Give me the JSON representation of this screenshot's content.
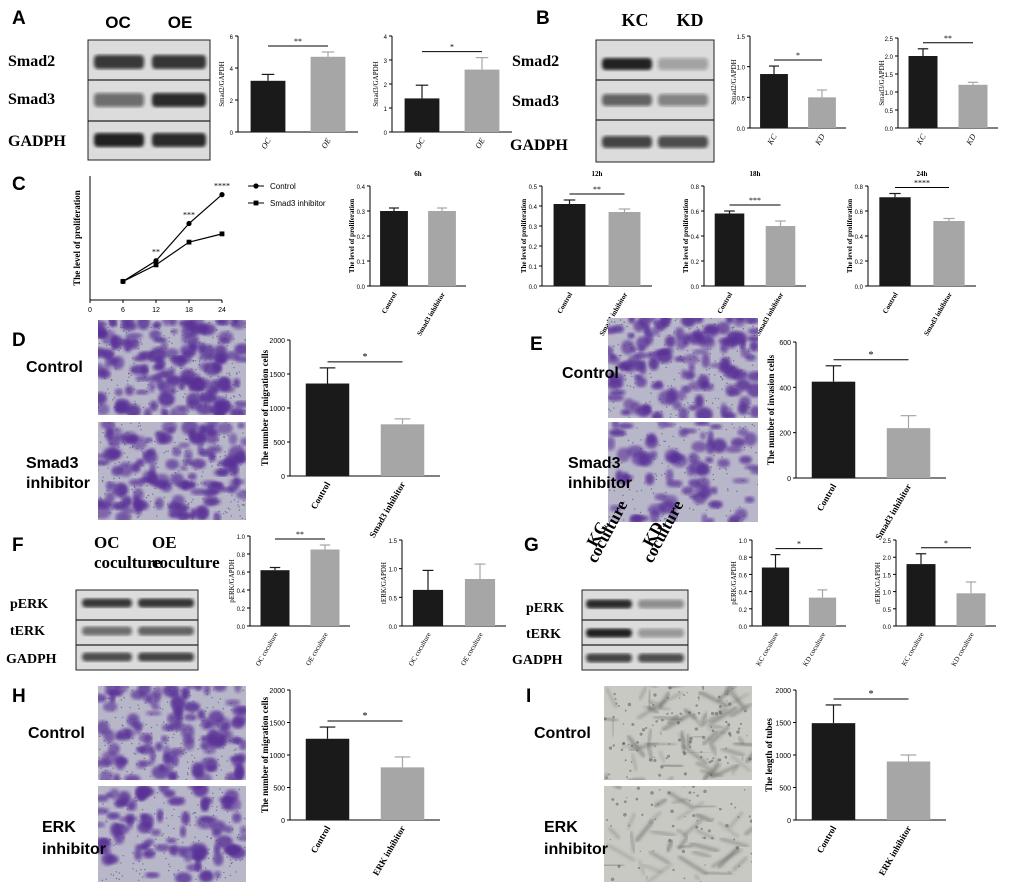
{
  "panels": {
    "A": {
      "label": "A",
      "blot": {
        "lanes": [
          "OC",
          "OE"
        ],
        "rows": [
          "Smad2",
          "Smad3",
          "GADPH"
        ]
      }
    },
    "B": {
      "label": "B",
      "blot": {
        "lanes": [
          "KC",
          "KD"
        ],
        "rows": [
          "Smad2",
          "Smad3",
          "GADPH"
        ]
      }
    },
    "C": {
      "label": "C",
      "legend": [
        "Control",
        "Smad3 inhibitor"
      ]
    },
    "D": {
      "label": "D",
      "images": [
        "Control",
        "Smad3\ninhibitor"
      ]
    },
    "E": {
      "label": "E",
      "images": [
        "Control",
        "Smad3\ninhibitor"
      ]
    },
    "F": {
      "label": "F",
      "blot": {
        "lanes": [
          "OC\ncoculture",
          "OE\ncoculture"
        ],
        "rows": [
          "pERK",
          "tERK",
          "GADPH"
        ]
      }
    },
    "G": {
      "label": "G",
      "blot": {
        "lanes": [
          "KC\ncoculture",
          "KD\ncoculture"
        ],
        "rows": [
          "pERK",
          "tERK",
          "GADPH"
        ]
      }
    },
    "H": {
      "label": "H",
      "images": [
        "Control",
        "ERK\ninhibitor"
      ]
    },
    "I": {
      "label": "I",
      "images": [
        "Control",
        "ERK\ninhibitor"
      ]
    }
  },
  "colors": {
    "black": "#1a1a1a",
    "gray": "#a6a6a6"
  },
  "chart_data": [
    {
      "id": "A1",
      "type": "bar",
      "categories": [
        "OC",
        "OE"
      ],
      "values": [
        3.2,
        4.7
      ],
      "errors": [
        0.4,
        0.3
      ],
      "ylabel": "Smad2/GAPDH",
      "ylim": [
        0,
        6
      ],
      "yticks": [
        0,
        2,
        4,
        6
      ],
      "sig": "**"
    },
    {
      "id": "A2",
      "type": "bar",
      "categories": [
        "OC",
        "OE"
      ],
      "values": [
        1.4,
        2.6
      ],
      "errors": [
        0.55,
        0.5
      ],
      "ylabel": "Smad3/GAPDH",
      "ylim": [
        0,
        4
      ],
      "yticks": [
        0,
        1,
        2,
        3,
        4
      ],
      "sig": "*"
    },
    {
      "id": "B1",
      "type": "bar",
      "categories": [
        "KC",
        "KD"
      ],
      "values": [
        0.88,
        0.5
      ],
      "errors": [
        0.13,
        0.12
      ],
      "ylabel": "Smad2/GAPDH",
      "ylim": [
        0,
        1.5
      ],
      "yticks": [
        0.0,
        0.5,
        1.0,
        1.5
      ],
      "sig": "*"
    },
    {
      "id": "B2",
      "type": "bar",
      "categories": [
        "KC",
        "KD"
      ],
      "values": [
        2.0,
        1.2
      ],
      "errors": [
        0.2,
        0.07
      ],
      "ylabel": "Smad3/GAPDH",
      "ylim": [
        0,
        2.5
      ],
      "yticks": [
        0.0,
        0.5,
        1.0,
        1.5,
        2.0,
        2.5
      ],
      "sig": "**"
    },
    {
      "id": "C0",
      "type": "line",
      "x": [
        6,
        12,
        18,
        24
      ],
      "xticks": [
        0,
        6,
        12,
        18,
        24
      ],
      "ylim": [
        0.2,
        0.8
      ],
      "ylabel": "The level of proliferation",
      "series": [
        {
          "name": "Control",
          "values": [
            0.29,
            0.39,
            0.57,
            0.71
          ]
        },
        {
          "name": "Smad3 inhibitor",
          "values": [
            0.29,
            0.37,
            0.48,
            0.52
          ]
        }
      ],
      "annotations": [
        "**",
        "***",
        "****"
      ]
    },
    {
      "id": "C1",
      "type": "bar",
      "title": "6h",
      "categories": [
        "Control",
        "Smad3 inhibitor"
      ],
      "values": [
        0.3,
        0.3
      ],
      "errors": [
        0.012,
        0.012
      ],
      "ylabel": "The level of proliferation",
      "ylim": [
        0,
        0.4
      ],
      "yticks": [
        0.0,
        0.1,
        0.2,
        0.3,
        0.4
      ],
      "sig": ""
    },
    {
      "id": "C2",
      "type": "bar",
      "title": "12h",
      "categories": [
        "Control",
        "Smad3 inhibitor"
      ],
      "values": [
        0.41,
        0.37
      ],
      "errors": [
        0.02,
        0.015
      ],
      "ylabel": "The level of proliferation",
      "ylim": [
        0,
        0.5
      ],
      "yticks": [
        0.0,
        0.1,
        0.2,
        0.3,
        0.4,
        0.5
      ],
      "sig": "**"
    },
    {
      "id": "C3",
      "type": "bar",
      "title": "18h",
      "categories": [
        "Control",
        "Smad3 inhibitor"
      ],
      "values": [
        0.58,
        0.48
      ],
      "errors": [
        0.02,
        0.04
      ],
      "ylabel": "The level of proliferation",
      "ylim": [
        0,
        0.8
      ],
      "yticks": [
        0.0,
        0.2,
        0.4,
        0.6,
        0.8
      ],
      "sig": "***"
    },
    {
      "id": "C4",
      "type": "bar",
      "title": "24h",
      "categories": [
        "Control",
        "Smad3 inhibitor"
      ],
      "values": [
        0.71,
        0.52
      ],
      "errors": [
        0.03,
        0.02
      ],
      "ylabel": "The level of proliferation",
      "ylim": [
        0,
        0.8
      ],
      "yticks": [
        0.0,
        0.2,
        0.4,
        0.6,
        0.8
      ],
      "sig": "****"
    },
    {
      "id": "D1",
      "type": "bar",
      "categories": [
        "Control",
        "Smad3 inhibitor"
      ],
      "values": [
        1360,
        760
      ],
      "errors": [
        230,
        80
      ],
      "ylabel": "The number of migration cells",
      "ylim": [
        0,
        2000
      ],
      "yticks": [
        0,
        500,
        1000,
        1500,
        2000
      ],
      "sig": "*"
    },
    {
      "id": "E1",
      "type": "bar",
      "categories": [
        "Control",
        "Smad3 inhibitor"
      ],
      "values": [
        425,
        220
      ],
      "errors": [
        70,
        55
      ],
      "ylabel": "The number of invasion cells",
      "ylim": [
        0,
        600
      ],
      "yticks": [
        0,
        200,
        400,
        600
      ],
      "sig": "*"
    },
    {
      "id": "F1",
      "type": "bar",
      "categories": [
        "OC coculture",
        "OE coculture"
      ],
      "values": [
        0.62,
        0.85
      ],
      "errors": [
        0.03,
        0.05
      ],
      "ylabel": "pERK/GAPDH",
      "ylim": [
        0,
        1.0
      ],
      "yticks": [
        0.0,
        0.2,
        0.4,
        0.6,
        0.8,
        1.0
      ],
      "sig": "**"
    },
    {
      "id": "F2",
      "type": "bar",
      "categories": [
        "OC coculture",
        "OE coculture"
      ],
      "values": [
        0.63,
        0.82
      ],
      "errors": [
        0.34,
        0.26
      ],
      "ylabel": "tERK/GAPDH",
      "ylim": [
        0,
        1.5
      ],
      "yticks": [
        0.0,
        0.5,
        1.0,
        1.5
      ],
      "sig": ""
    },
    {
      "id": "G1",
      "type": "bar",
      "categories": [
        "KC coculture",
        "KD coculture"
      ],
      "values": [
        0.68,
        0.33
      ],
      "errors": [
        0.15,
        0.09
      ],
      "ylabel": "pERK/GAPDH",
      "ylim": [
        0,
        1.0
      ],
      "yticks": [
        0.0,
        0.2,
        0.4,
        0.6,
        0.8,
        1.0
      ],
      "sig": "*"
    },
    {
      "id": "G2",
      "type": "bar",
      "categories": [
        "KC coculture",
        "KD coculture"
      ],
      "values": [
        1.8,
        0.95
      ],
      "errors": [
        0.3,
        0.33
      ],
      "ylabel": "tERK/GAPDH",
      "ylim": [
        0,
        2.5
      ],
      "yticks": [
        0.0,
        0.5,
        1.0,
        1.5,
        2.0,
        2.5
      ],
      "sig": "*"
    },
    {
      "id": "H1",
      "type": "bar",
      "categories": [
        "Control",
        "ERK inhibitor"
      ],
      "values": [
        1250,
        810
      ],
      "errors": [
        180,
        160
      ],
      "ylabel": "The number of migration cells",
      "ylim": [
        0,
        2000
      ],
      "yticks": [
        0,
        500,
        1000,
        1500,
        2000
      ],
      "sig": "*"
    },
    {
      "id": "I1",
      "type": "bar",
      "categories": [
        "Control",
        "ERK inhibitor"
      ],
      "values": [
        1490,
        900
      ],
      "errors": [
        280,
        100
      ],
      "ylabel": "The length of tubes",
      "ylim": [
        0,
        2000
      ],
      "yticks": [
        0,
        500,
        1000,
        1500,
        2000
      ],
      "sig": "*"
    }
  ]
}
